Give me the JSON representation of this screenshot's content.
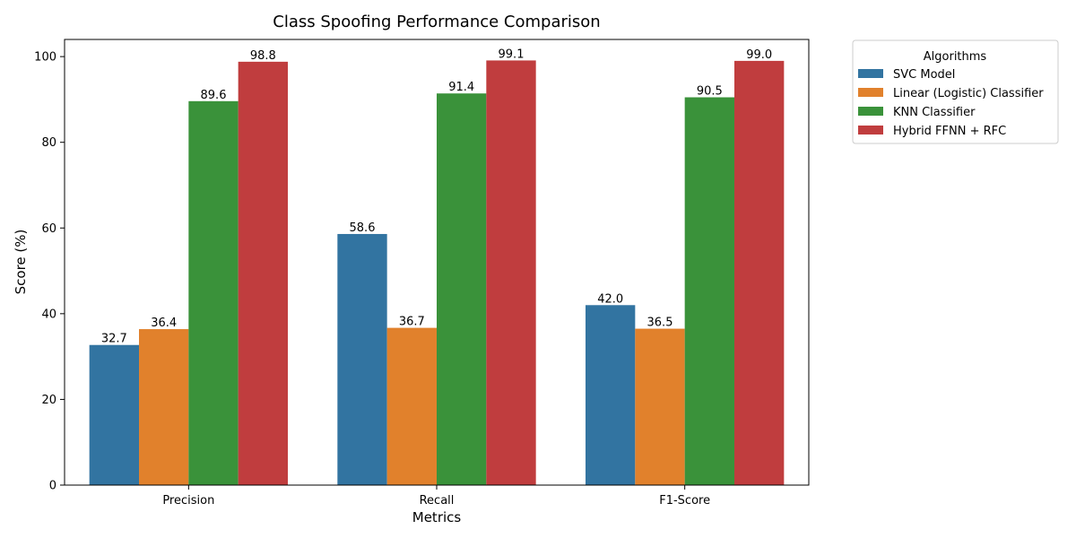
{
  "chart_data": {
    "type": "bar",
    "title": "Class Spoofing Performance Comparison",
    "xlabel": "Metrics",
    "ylabel": "Score (%)",
    "categories": [
      "Precision",
      "Recall",
      "F1-Score"
    ],
    "ylim": [
      0,
      104
    ],
    "yticks": [
      0,
      20,
      40,
      60,
      80,
      100
    ],
    "grid": false,
    "legend": {
      "title": "Algorithms",
      "placement": "outside-top-right"
    },
    "series": [
      {
        "name": "SVC Model",
        "color": "#3274a1",
        "values": [
          32.7,
          58.6,
          42.0
        ],
        "labels": [
          "32.7",
          "58.6",
          "42.0"
        ]
      },
      {
        "name": "Linear (Logistic) Classifier",
        "color": "#e1812c",
        "values": [
          36.4,
          36.7,
          36.5
        ],
        "labels": [
          "36.4",
          "36.7",
          "36.5"
        ]
      },
      {
        "name": "KNN Classifier",
        "color": "#3a923a",
        "values": [
          89.6,
          91.4,
          90.5
        ],
        "labels": [
          "89.6",
          "91.4",
          "90.5"
        ]
      },
      {
        "name": "Hybrid FFNN + RFC",
        "color": "#c03d3e",
        "values": [
          98.8,
          99.1,
          99.0
        ],
        "labels": [
          "98.8",
          "99.1",
          "99.0"
        ]
      }
    ]
  }
}
